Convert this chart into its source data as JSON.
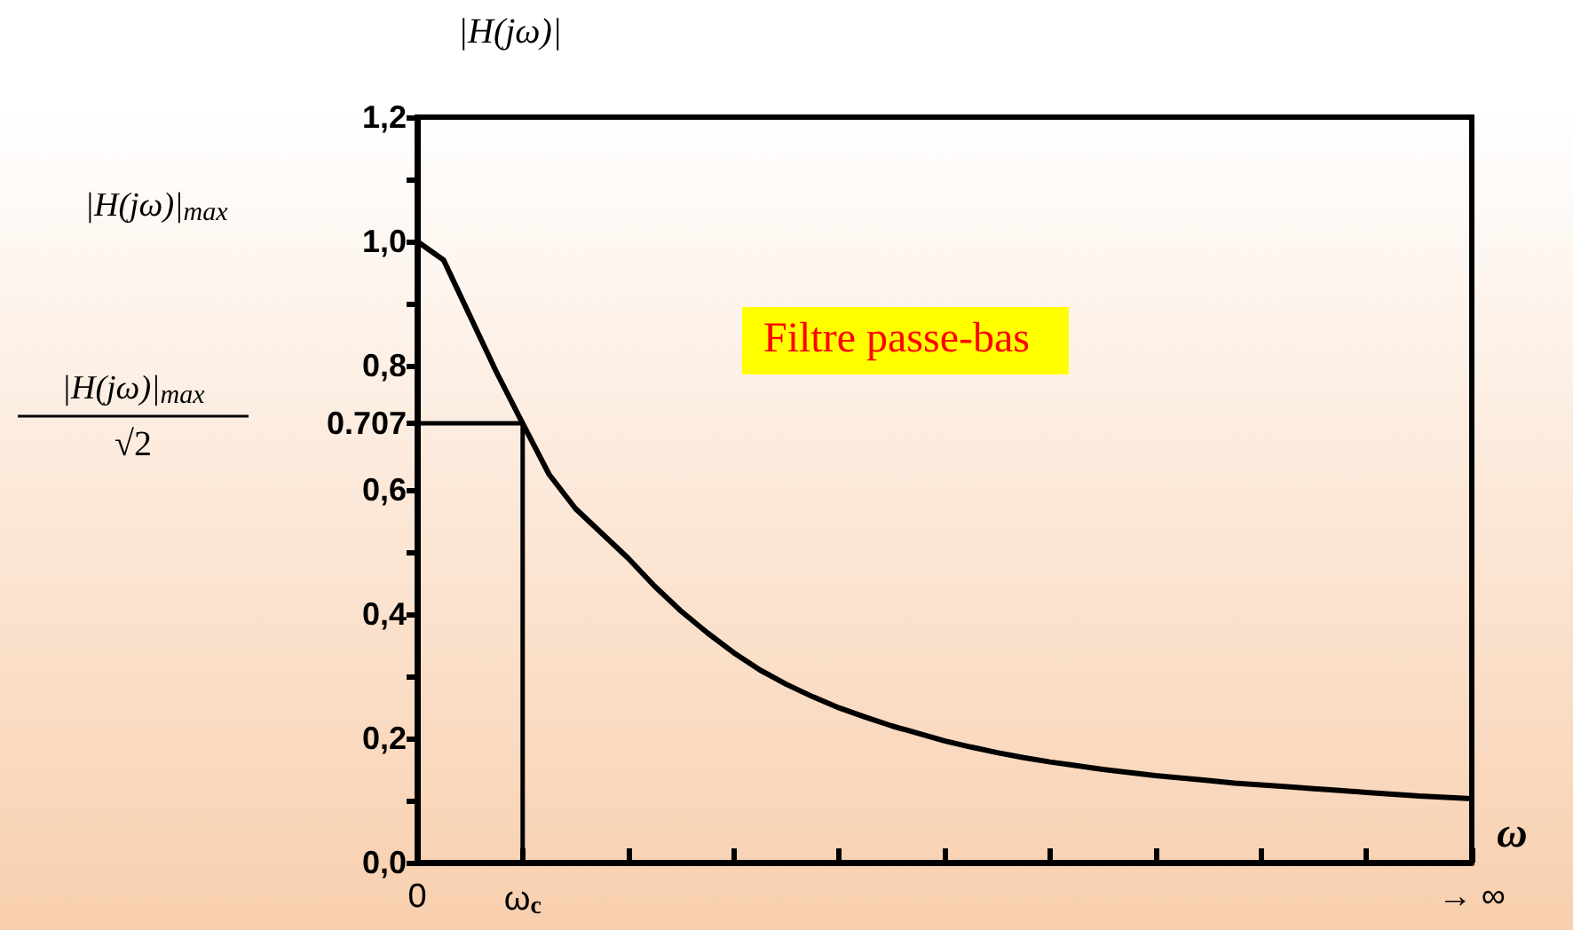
{
  "chart_data": {
    "type": "line",
    "ylabel": "|H(jω)|",
    "xlabel": "ω",
    "categories": [
      "0",
      null,
      null,
      null,
      "ω$_{c}$",
      null,
      null,
      null,
      null,
      null,
      null,
      null,
      null,
      null,
      null,
      null,
      null,
      null,
      null,
      null,
      null,
      null,
      null,
      null,
      null,
      null,
      null,
      null,
      null,
      null,
      null,
      null,
      null,
      null,
      null,
      null,
      null,
      null,
      null,
      null,
      "→ ∞"
    ],
    "ylim": [
      0,
      1.2
    ],
    "yticks": [
      {
        "value": 0,
        "label": "0,0"
      },
      {
        "value": 0.1,
        "label": null
      },
      {
        "value": 0.2,
        "label": "0,2"
      },
      {
        "value": 0.3,
        "label": null
      },
      {
        "value": 0.4,
        "label": "0,4"
      },
      {
        "value": 0.5,
        "label": null
      },
      {
        "value": 0.6,
        "label": "0,6"
      },
      {
        "value": 0.707,
        "label": "0.707"
      },
      {
        "value": 0.8,
        "label": "0,8"
      },
      {
        "value": 0.9,
        "label": null
      },
      {
        "value": 1.0,
        "label": "1,0"
      },
      {
        "value": 1.1,
        "label": null
      },
      {
        "value": 1.2,
        "label": "1,2"
      }
    ],
    "series": [
      {
        "color": "#000000",
        "values": [
          1.0,
          0.97,
          0.88,
          0.79,
          0.707,
          0.625,
          0.57,
          0.53,
          0.49,
          0.445,
          0.405,
          0.37,
          0.338,
          0.31,
          0.287,
          0.267,
          0.249,
          0.234,
          0.22,
          0.208,
          0.196,
          0.186,
          0.177,
          0.169,
          0.162,
          0.156,
          0.15,
          0.145,
          0.14,
          0.136,
          0.132,
          0.128,
          0.125,
          0.122,
          0.119,
          0.116,
          0.113,
          0.11,
          0.107,
          0.105,
          0.103
        ]
      },
      {
        "color": "#000000",
        "x": [
          "0",
          "ω$_{c}$",
          "ω$_{c}$"
        ],
        "values": [
          0.707,
          0.707,
          0
        ]
      }
    ],
    "annotations": [
      "|H(jω)|$_{max}$",
      "|H(jω)|$_{max}$",
      "√2",
      "Filtre passe-bas"
    ],
    "grid": false,
    "marker": "none",
    "line_style": "solid"
  }
}
